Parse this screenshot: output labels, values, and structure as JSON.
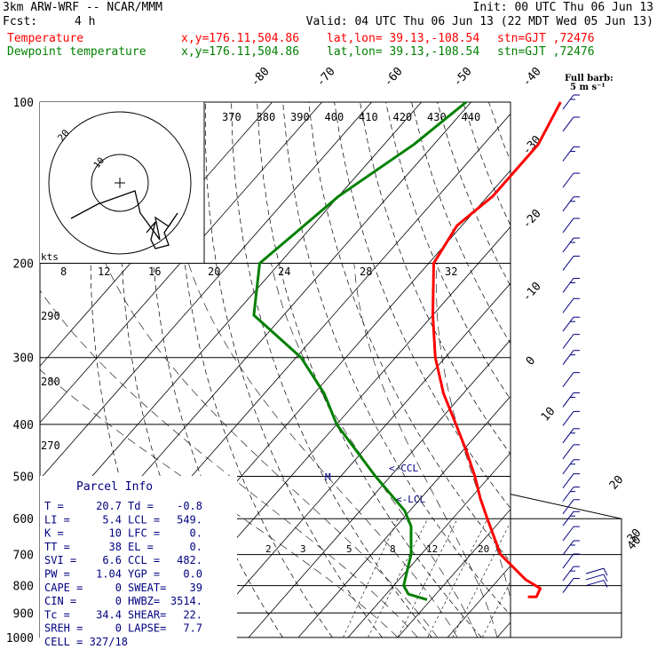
{
  "header": {
    "model": "3km ARW-WRF -- NCAR/MMM",
    "init": "Init: 00 UTC Thu 06 Jun 13",
    "fcst_label": "Fcst:",
    "fcst_value": "4 h",
    "valid": "Valid: 04 UTC Thu 06 Jun 13 (22 MDT Wed 05 Jun 13)"
  },
  "legend": [
    {
      "name": "Temperature",
      "color": "#ff0000",
      "xy": "x,y=176.11,504.86",
      "latlon": "lat,lon= 39.13,-108.54",
      "stn": "stn=GJT ,72476"
    },
    {
      "name": "Dewpoint temperature",
      "color": "#008000",
      "xy": "x,y=176.11,504.86",
      "latlon": "lat,lon= 39.13,-108.54",
      "stn": "stn=GJT ,72476"
    }
  ],
  "barb_legend": {
    "line1": "Full barb:",
    "line2": "5 m s⁻¹"
  },
  "chart_data": {
    "type": "line",
    "diagram": "skew-T log-P",
    "y_axis": {
      "ticks": [
        100,
        200,
        300,
        400,
        500,
        600,
        700,
        800,
        900,
        1000
      ],
      "scale": "log"
    },
    "isotherm_labels": [
      "-80",
      "-70",
      "-60",
      "-50",
      "-40",
      "-30",
      "-20",
      "-10",
      "0",
      "10",
      "20",
      "30",
      "40"
    ],
    "theta_labels": [
      "370",
      "380",
      "390",
      "400",
      "410",
      "420",
      "430",
      "440"
    ],
    "theta_left_labels": [
      "290",
      "280",
      "270"
    ],
    "mixing_ratio_labels": [
      "2",
      "3",
      "5",
      "8",
      "12",
      "20"
    ],
    "hodograph_speed_labels": [
      "8",
      "12",
      "16",
      "20",
      "24",
      "28",
      "32"
    ],
    "hodograph_unit": "kts",
    "hodograph_ring_labels": [
      "20",
      "10"
    ],
    "markers": [
      "M",
      "<-CCL",
      "<-LCL"
    ],
    "series": [
      {
        "name": "Temperature",
        "color": "#ff0000",
        "points": [
          [
            100,
            -62
          ],
          [
            120,
            -59
          ],
          [
            150,
            -59
          ],
          [
            170,
            -61
          ],
          [
            200,
            -59
          ],
          [
            250,
            -50
          ],
          [
            300,
            -42
          ],
          [
            350,
            -34
          ],
          [
            400,
            -26
          ],
          [
            450,
            -19
          ],
          [
            500,
            -13
          ],
          [
            550,
            -8
          ],
          [
            600,
            -3
          ],
          [
            700,
            6
          ],
          [
            780,
            15.5
          ],
          [
            810,
            20
          ],
          [
            840,
            20.7
          ],
          [
            840,
            19
          ]
        ]
      },
      {
        "name": "Dewpoint temperature",
        "color": "#008000",
        "points": [
          [
            100,
            -81
          ],
          [
            120,
            -84
          ],
          [
            150,
            -90
          ],
          [
            200,
            -94
          ],
          [
            250,
            -86
          ],
          [
            300,
            -69
          ],
          [
            350,
            -58
          ],
          [
            400,
            -50
          ],
          [
            500,
            -33
          ],
          [
            580,
            -21
          ],
          [
            620,
            -17
          ],
          [
            700,
            -12
          ],
          [
            800,
            -8
          ],
          [
            830,
            -5.5
          ],
          [
            850,
            -0.8
          ]
        ]
      }
    ],
    "wind_barbs": [
      100,
      110,
      125,
      140,
      155,
      170,
      185,
      200,
      220,
      240,
      260,
      280,
      300,
      330,
      360,
      390,
      420,
      450,
      480,
      510,
      540,
      570,
      600,
      640,
      680,
      720,
      760,
      800
    ]
  },
  "parcel": {
    "title": "Parcel Info",
    "rows": [
      [
        "T  =",
        "20.7",
        "Td  =",
        "-0.8"
      ],
      [
        "LI =",
        "5.4",
        "LCL =",
        "549."
      ],
      [
        "K  =",
        "10",
        "LFC =",
        "0."
      ],
      [
        "TT =",
        "38",
        "EL  =",
        "0."
      ],
      [
        "SVI =",
        "6.6",
        "CCL =",
        "482."
      ],
      [
        "PW =",
        "1.04",
        "YGP =",
        "0.0"
      ],
      [
        "CAPE =",
        "0",
        "SWEAT=",
        "39"
      ],
      [
        "CIN =",
        "0",
        "HWBZ=",
        "3514."
      ],
      [
        "Tc =",
        "34.4",
        "SHEAR=",
        "22."
      ],
      [
        "SREH =",
        "0",
        "LAPSE=",
        "7.7"
      ]
    ],
    "cell": "CELL = 327/18"
  }
}
